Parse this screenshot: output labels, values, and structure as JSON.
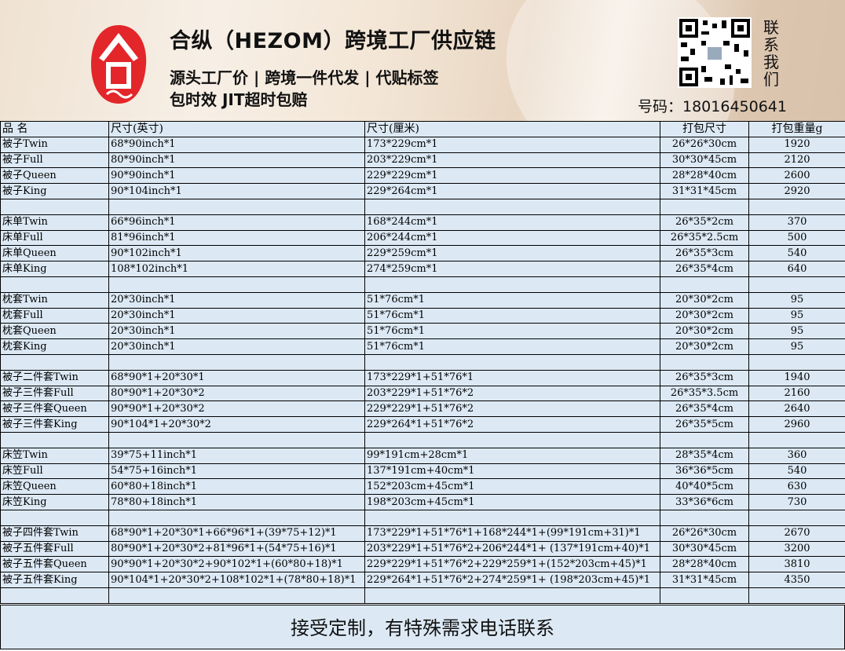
{
  "banner": {
    "title": "合纵（HEZOM）跨境工厂供应链",
    "subtitle1": "源头工厂价 | 跨境一件代发 | 代贴标签",
    "subtitle2": "包时效 JIT超时包赔",
    "contact_label": "联系我们",
    "phone": "号码：18016450641",
    "logo_char": "合",
    "brand_color": "#e3262a"
  },
  "table": {
    "headers": [
      "品 名",
      "尺寸(英寸)",
      "尺寸(厘米)",
      "打包尺寸",
      "打包重量g"
    ],
    "rows": [
      [
        "被子Twin",
        "68*90inch*1",
        "173*229cm*1",
        "26*26*30cm",
        "1920"
      ],
      [
        "被子Full",
        "80*90inch*1",
        "203*229cm*1",
        "30*30*45cm",
        "2120"
      ],
      [
        "被子Queen",
        "90*90inch*1",
        "229*229cm*1",
        "28*28*40cm",
        "2600"
      ],
      [
        "被子King",
        "90*104inch*1",
        "229*264cm*1",
        "31*31*45cm",
        "2920"
      ],
      [
        "",
        "",
        "",
        "",
        ""
      ],
      [
        "床单Twin",
        "66*96inch*1",
        "168*244cm*1",
        "26*35*2cm",
        "370"
      ],
      [
        "床单Full",
        "81*96inch*1",
        "206*244cm*1",
        "26*35*2.5cm",
        "500"
      ],
      [
        "床单Queen",
        "90*102inch*1",
        "229*259cm*1",
        "26*35*3cm",
        "540"
      ],
      [
        "床单King",
        "108*102inch*1",
        "274*259cm*1",
        "26*35*4cm",
        "640"
      ],
      [
        "",
        "",
        "",
        "",
        ""
      ],
      [
        "枕套Twin",
        "20*30inch*1",
        "51*76cm*1",
        "20*30*2cm",
        "95"
      ],
      [
        "枕套Full",
        "20*30inch*1",
        "51*76cm*1",
        "20*30*2cm",
        "95"
      ],
      [
        "枕套Queen",
        "20*30inch*1",
        "51*76cm*1",
        "20*30*2cm",
        "95"
      ],
      [
        "枕套King",
        "20*30inch*1",
        "51*76cm*1",
        "20*30*2cm",
        "95"
      ],
      [
        "",
        "",
        "",
        "",
        ""
      ],
      [
        "被子二件套Twin",
        "68*90*1+20*30*1",
        "173*229*1+51*76*1",
        "26*35*3cm",
        "1940"
      ],
      [
        "被子三件套Full",
        "80*90*1+20*30*2",
        "203*229*1+51*76*2",
        "26*35*3.5cm",
        "2160"
      ],
      [
        "被子三件套Queen",
        "90*90*1+20*30*2",
        "229*229*1+51*76*2",
        "26*35*4cm",
        "2640"
      ],
      [
        "被子三件套King",
        "90*104*1+20*30*2",
        "229*264*1+51*76*2",
        "26*35*5cm",
        "2960"
      ],
      [
        "",
        "",
        "",
        "",
        ""
      ],
      [
        "床笠Twin",
        "39*75+11inch*1",
        "99*191cm+28cm*1",
        "28*35*4cm",
        "360"
      ],
      [
        "床笠Full",
        "54*75+16inch*1",
        "137*191cm+40cm*1",
        "36*36*5cm",
        "540"
      ],
      [
        "床笠Queen",
        "60*80+18inch*1",
        "152*203cm+45cm*1",
        "40*40*5cm",
        "630"
      ],
      [
        "床笠King",
        "78*80+18inch*1",
        "198*203cm+45cm*1",
        "33*36*6cm",
        "730"
      ],
      [
        "",
        "",
        "",
        "",
        ""
      ],
      [
        "被子四件套Twin",
        "68*90*1+20*30*1+66*96*1+(39*75+12)*1",
        "173*229*1+51*76*1+168*244*1+(99*191cm+31)*1",
        "26*26*30cm",
        "2670"
      ],
      [
        "被子五件套Full",
        "80*90*1+20*30*2+81*96*1+(54*75+16)*1",
        "203*229*1+51*76*2+206*244*1+ (137*191cm+40)*1",
        "30*30*45cm",
        "3200"
      ],
      [
        "被子五件套Queen",
        "90*90*1+20*30*2+90*102*1+(60*80+18)*1",
        "229*229*1+51*76*2+229*259*1+(152*203cm+45)*1",
        "28*28*40cm",
        "3810"
      ],
      [
        "被子五件套King",
        "90*104*1+20*30*2+108*102*1+(78*80+18)*1",
        "229*264*1+51*76*2+274*259*1+ (198*203cm+45)*1",
        "31*31*45cm",
        "4350"
      ],
      [
        "",
        "",
        "",
        "",
        ""
      ]
    ]
  },
  "footer": {
    "text": "接受定制，有特殊需求电话联系"
  }
}
